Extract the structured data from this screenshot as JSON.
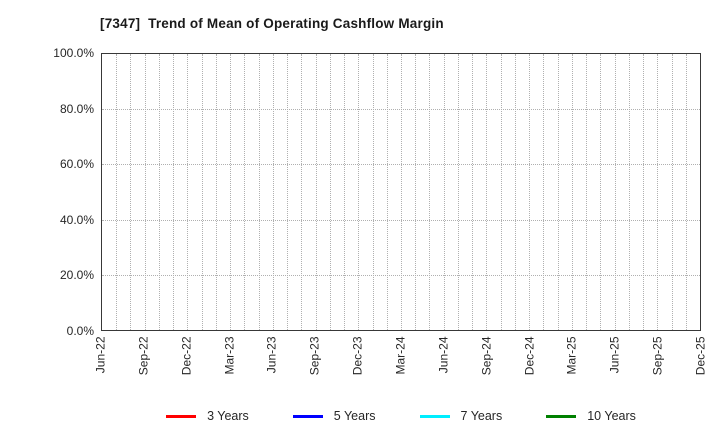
{
  "header": {
    "title": "[7347]  Trend of Mean of Operating Cashflow Margin"
  },
  "chart_data": {
    "type": "line",
    "title": "[7347]  Trend of Mean of Operating Cashflow Margin",
    "xlabel": "",
    "ylabel": "",
    "ylim": [
      0,
      100
    ],
    "y_unit": "%",
    "y_ticks": [
      {
        "value": 100,
        "label": "100.0%"
      },
      {
        "value": 80,
        "label": "80.0%"
      },
      {
        "value": 60,
        "label": "60.0%"
      },
      {
        "value": 40,
        "label": "40.0%"
      },
      {
        "value": 20,
        "label": "20.0%"
      },
      {
        "value": 0,
        "label": "0.0%"
      }
    ],
    "x_axis": {
      "total_months": 42,
      "gridline_every_months": 1,
      "ticks": [
        {
          "month": 0,
          "label": "Jun-22"
        },
        {
          "month": 3,
          "label": "Sep-22"
        },
        {
          "month": 6,
          "label": "Dec-22"
        },
        {
          "month": 9,
          "label": "Mar-23"
        },
        {
          "month": 12,
          "label": "Jun-23"
        },
        {
          "month": 15,
          "label": "Sep-23"
        },
        {
          "month": 18,
          "label": "Dec-23"
        },
        {
          "month": 21,
          "label": "Mar-24"
        },
        {
          "month": 24,
          "label": "Jun-24"
        },
        {
          "month": 27,
          "label": "Sep-24"
        },
        {
          "month": 30,
          "label": "Dec-24"
        },
        {
          "month": 33,
          "label": "Mar-25"
        },
        {
          "month": 36,
          "label": "Jun-25"
        },
        {
          "month": 39,
          "label": "Sep-25"
        },
        {
          "month": 42,
          "label": "Dec-25"
        }
      ]
    },
    "grid": {
      "on": true,
      "style": "dotted",
      "color": "#b0b0b0"
    },
    "legend": {
      "position": "bottom-center",
      "entries": [
        {
          "label": "3 Years",
          "color": "#ff0000"
        },
        {
          "label": "5 Years",
          "color": "#0000ff"
        },
        {
          "label": "7 Years",
          "color": "#00eeff"
        },
        {
          "label": "10 Years",
          "color": "#008000"
        }
      ]
    },
    "series": [
      {
        "name": "3 Years",
        "color": "#ff0000",
        "values": []
      },
      {
        "name": "5 Years",
        "color": "#0000ff",
        "values": []
      },
      {
        "name": "7 Years",
        "color": "#00eeff",
        "values": []
      },
      {
        "name": "10 Years",
        "color": "#008000",
        "values": []
      }
    ]
  }
}
